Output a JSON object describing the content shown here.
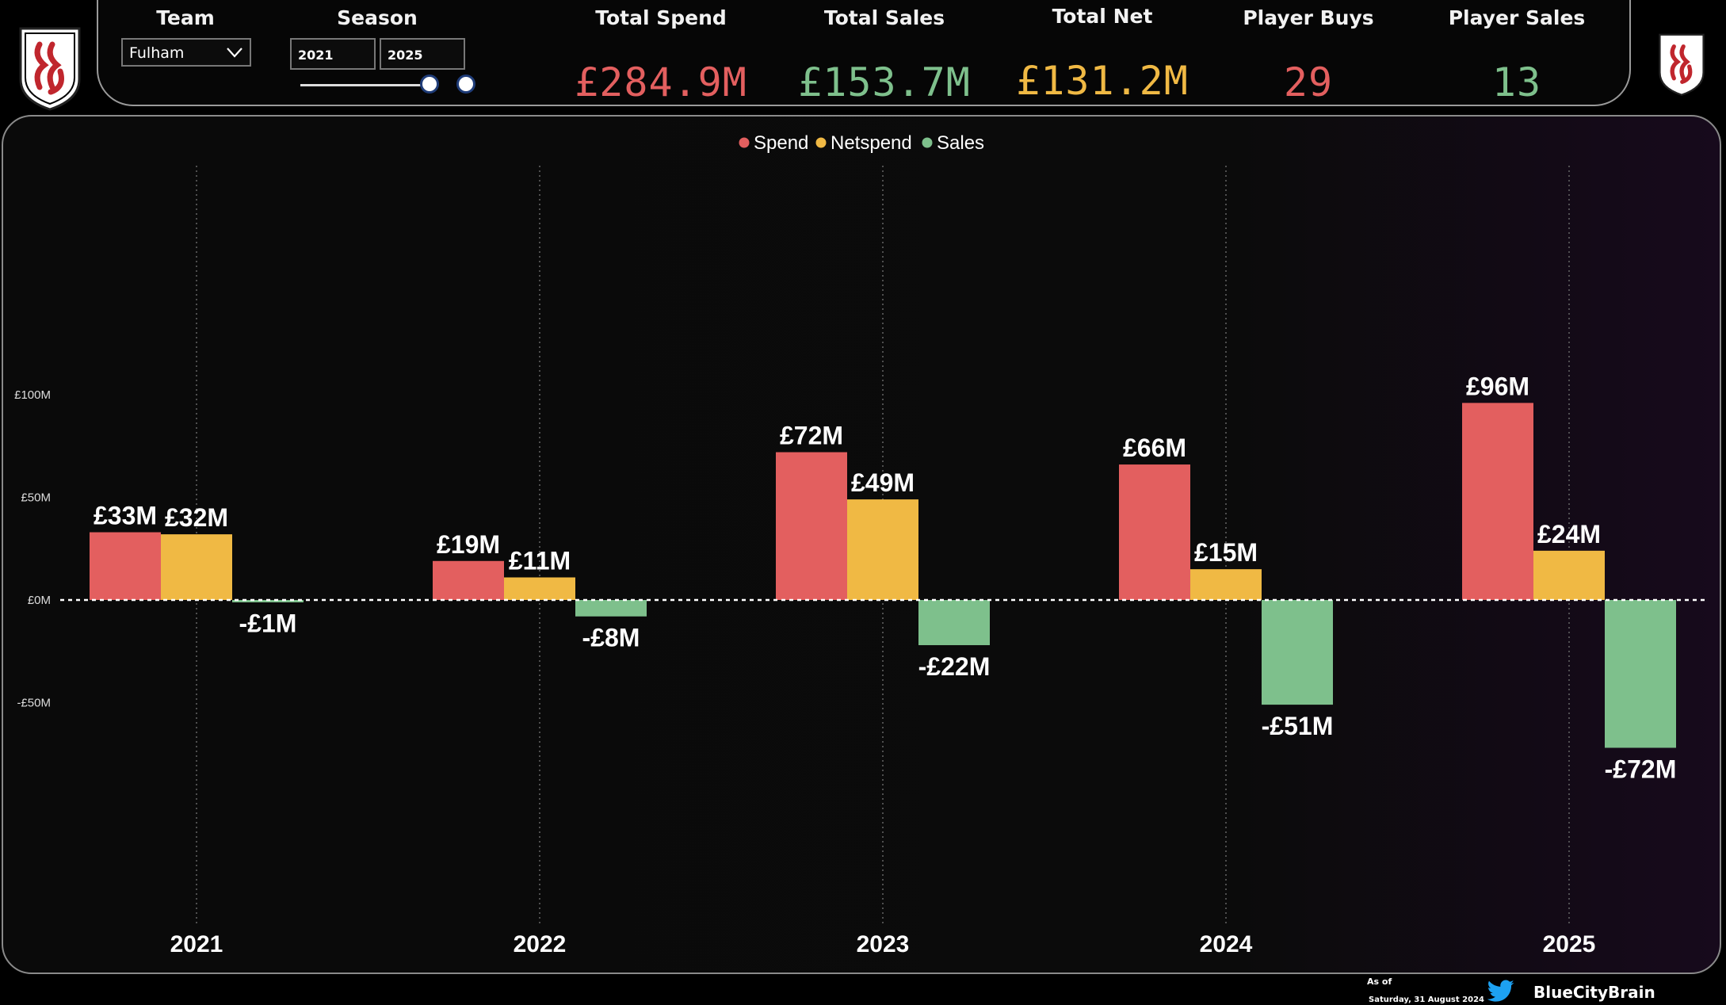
{
  "header": {
    "team_label": "Team",
    "team_value": "Fulham",
    "season_label": "Season",
    "season_from": "2021",
    "season_to": "2025",
    "kpis": [
      {
        "label": "Total Spend",
        "value": "£284.9M",
        "color": "#E35F5F"
      },
      {
        "label": "Total Sales",
        "value": "£153.7M",
        "color": "#7EC08C"
      },
      {
        "label": "Total Net",
        "value": "£131.2M",
        "color": "#F0B944"
      },
      {
        "label": "Player Buys",
        "value": "29",
        "color": "#E35F5F"
      },
      {
        "label": "Player Sales",
        "value": "13",
        "color": "#7EC08C"
      }
    ]
  },
  "icons": {
    "crest": "fulham-crest-icon",
    "dropdown": "chevron-down-icon",
    "twitter": "twitter-bird-icon"
  },
  "colors": {
    "spend": "#E35F5F",
    "netspend": "#F0B944",
    "sales": "#7EC08C"
  },
  "chart_data": {
    "type": "bar",
    "categories": [
      "2021",
      "2022",
      "2023",
      "2024",
      "2025"
    ],
    "series": [
      {
        "name": "Spend",
        "values": [
          33,
          19,
          72,
          66,
          96
        ],
        "labels": [
          "£33M",
          "£19M",
          "£72M",
          "£66M",
          "£96M"
        ],
        "color": "#E35F5F"
      },
      {
        "name": "Netspend",
        "values": [
          32,
          11,
          49,
          15,
          24
        ],
        "labels": [
          "£32M",
          "£11M",
          "£49M",
          "£15M",
          "£24M"
        ],
        "color": "#F0B944"
      },
      {
        "name": "Sales",
        "values": [
          -1,
          -8,
          -22,
          -51,
          -72
        ],
        "labels": [
          "-£1M",
          "-£8M",
          "-£22M",
          "-£51M",
          "-£72M"
        ],
        "color": "#7EC08C"
      }
    ],
    "yticks": [
      {
        "value": 100,
        "label": "£100M"
      },
      {
        "value": 50,
        "label": "£50M"
      },
      {
        "value": 0,
        "label": "£0M"
      },
      {
        "value": -50,
        "label": "-£50M"
      }
    ],
    "ylim": [
      -82,
      106
    ],
    "legend_position": "top-center",
    "zero_line": "dashed"
  },
  "footer": {
    "as_of_label": "As of",
    "as_of_date": "Saturday, 31 August 2024",
    "handle": "BlueCityBrain"
  }
}
